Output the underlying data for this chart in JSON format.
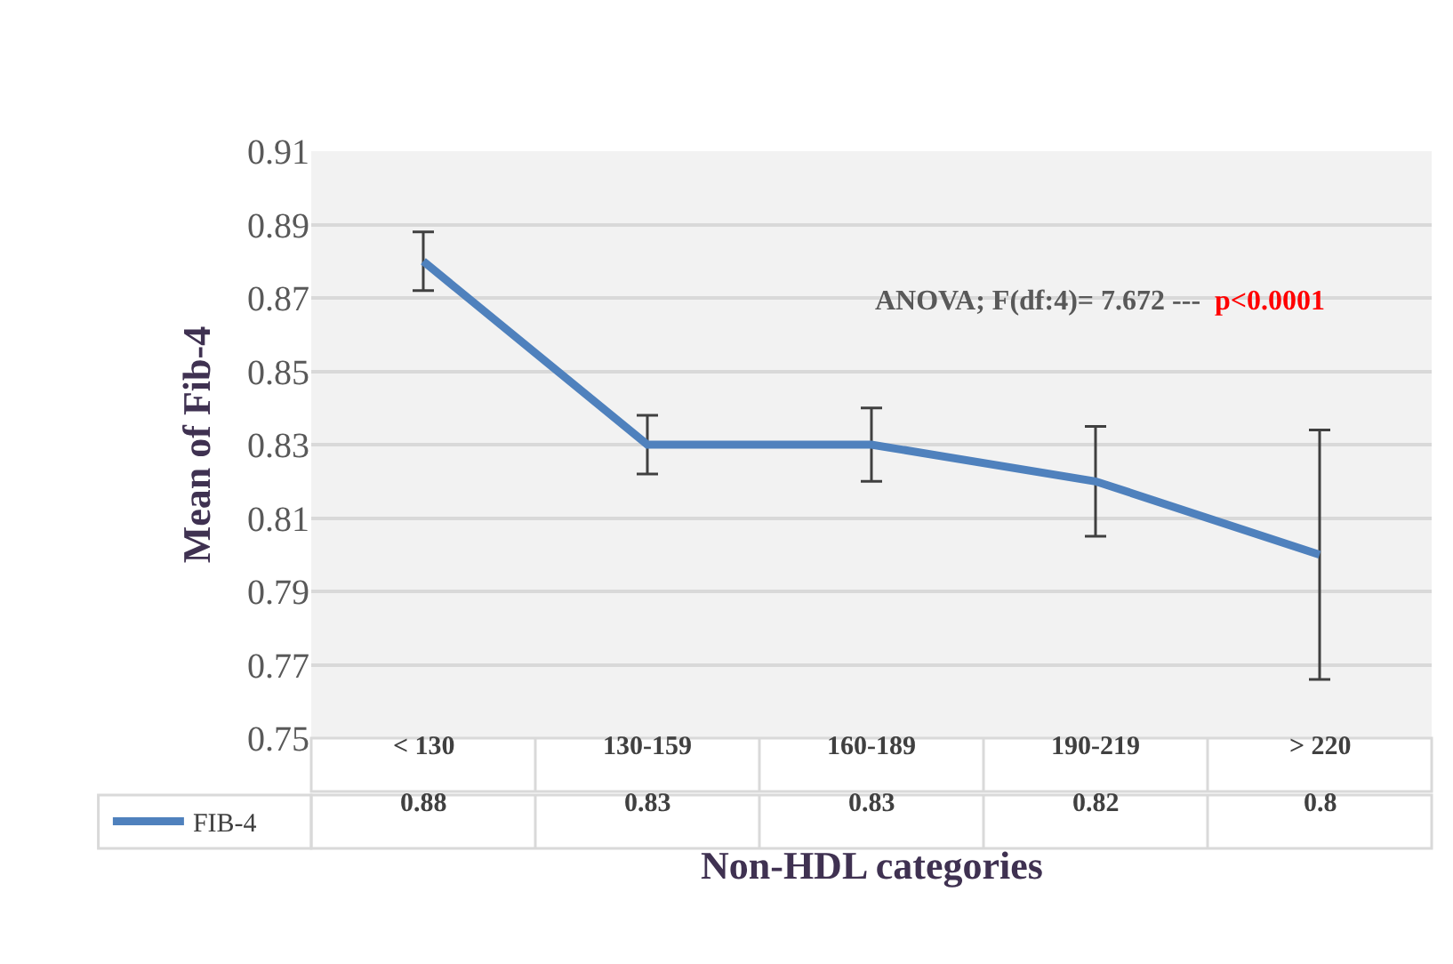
{
  "chart_data": {
    "type": "line",
    "xlabel": "Non-HDL categories",
    "ylabel": "Mean of Fib-4",
    "categories": [
      "< 130",
      "130-159",
      "160-189",
      "190-219",
      "> 220"
    ],
    "series": [
      {
        "name": "FIB-4",
        "color": "#4f81bd",
        "values": [
          0.88,
          0.83,
          0.83,
          0.82,
          0.8
        ],
        "errors": [
          [
            0.872,
            0.888
          ],
          [
            0.822,
            0.838
          ],
          [
            0.82,
            0.84
          ],
          [
            0.805,
            0.835
          ],
          [
            0.766,
            0.834
          ]
        ]
      }
    ],
    "ylim": [
      0.75,
      0.91
    ],
    "yticks": [
      0.75,
      0.77,
      0.79,
      0.81,
      0.83,
      0.85,
      0.87,
      0.89,
      0.91
    ],
    "grid": "y",
    "legend": "bottom left",
    "data_labels": true,
    "marker": "none",
    "line_style": "solid",
    "annotations": [
      "ANOVA; F(df:4)= 7.672 ---",
      "p<0.0001"
    ]
  }
}
